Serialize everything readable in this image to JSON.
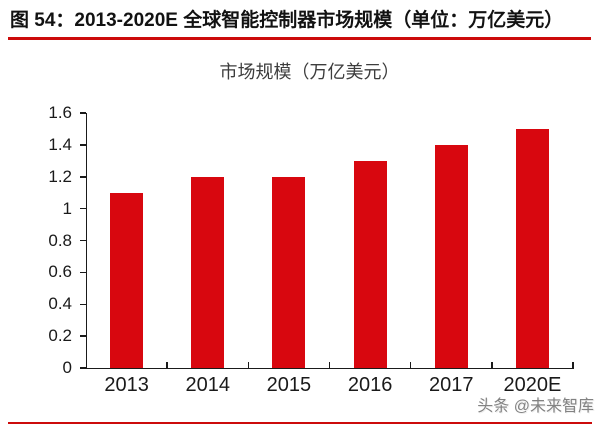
{
  "page": {
    "title": "图 54：2013-2020E 全球智能控制器市场规模（单位：万亿美元）",
    "watermark": "头条 @未来智库"
  },
  "colors": {
    "bar": "#D8070F",
    "rule_red": "#CC0B0B",
    "axis": "#1A1A1A"
  },
  "chart_data": {
    "type": "bar",
    "title": "市场规模（万亿美元）",
    "categories": [
      "2013",
      "2014",
      "2015",
      "2016",
      "2017",
      "2020E"
    ],
    "values": [
      1.1,
      1.2,
      1.2,
      1.3,
      1.4,
      1.5
    ],
    "ylabel": "",
    "xlabel": "",
    "unit": "万亿美元",
    "ylim": [
      0,
      1.6
    ],
    "ytick_step": 0.2,
    "ytick_labels": [
      "0",
      "0.2",
      "0.4",
      "0.6",
      "0.8",
      "1",
      "1.2",
      "1.4",
      "1.6"
    ],
    "grid": false,
    "legend": "none",
    "bar_color": "#D8070F"
  }
}
